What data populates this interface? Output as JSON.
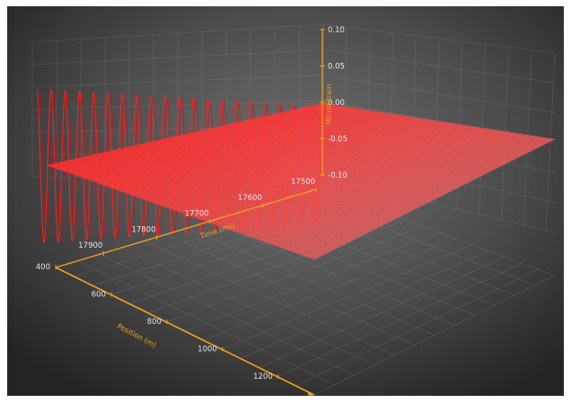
{
  "chart_data": {
    "type": "surface",
    "title": "",
    "axes": {
      "time": {
        "label": "Time (ms)",
        "ticks": [
          17500,
          17600,
          17700,
          17800,
          17900
        ],
        "range": [
          17500,
          17990
        ]
      },
      "position": {
        "label": "Position (m)",
        "ticks": [
          400,
          600,
          800,
          1000,
          1200
        ],
        "range": [
          400,
          1330
        ]
      },
      "value": {
        "label": "MicroStrain",
        "ticks": [
          0.1,
          0.05,
          0.0,
          -0.05,
          -0.1
        ],
        "tick_labels": [
          "0.10",
          "0.05",
          "0.00",
          "-0.05",
          "-0.10"
        ],
        "range": [
          -0.1,
          0.1
        ]
      }
    },
    "series": [
      {
        "kind": "sinusoidal-surface",
        "amplitude_approx": 0.1,
        "cycles_visible": 20,
        "color": "#ff2020"
      }
    ],
    "grid": true,
    "colors": {
      "background_center": "#6f6f6f",
      "background_edge": "#252525",
      "axis": "#f2a021",
      "surface": "#ff2020"
    }
  }
}
